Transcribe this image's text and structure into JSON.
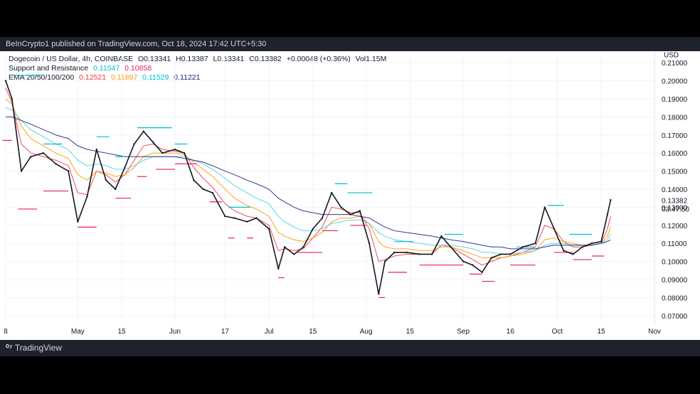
{
  "header": {
    "published": "BeInCrypto1 published on TradingView.com, Oct 18, 2024 17:42 UTC+5:30"
  },
  "footer": {
    "brand": "TradingView"
  },
  "legend": {
    "symbol_line": "Dogecoin / US Dollar, 4h, COINBASE",
    "ohlc": {
      "O": "O0.13341",
      "H": "H0.13387",
      "L": "L0.13341",
      "C": "C0.13382",
      "chg": "+0.00048 (+0.36%)",
      "vol": "Vol1.15M"
    },
    "sr_label": "Support and Resistance",
    "sr_values": [
      "0.11547",
      "0.10858"
    ],
    "ema_label": "EMA 20/50/100/200",
    "ema_values": [
      "0.12521",
      "0.11897",
      "0.11529",
      "0.11221"
    ]
  },
  "colors": {
    "candles": "#131722",
    "resistance": "#00bcd4",
    "support": "#e91e63",
    "ema20": "#f23645",
    "ema50": "#ff9800",
    "ema100": "#4dd0e1",
    "ema200": "#1a237e",
    "grid": "#f0f3fa",
    "axis_text": "#131722"
  },
  "chart_data": {
    "type": "line",
    "title": "Dogecoin / US Dollar, 4h, COINBASE",
    "currency_label": "USD",
    "y_ticks": [
      "0.21000",
      "0.20000",
      "0.19000",
      "0.18000",
      "0.17000",
      "0.16000",
      "0.15000",
      "0.14000",
      "0.13000",
      "0.12000",
      "0.11000",
      "0.10000",
      "0.09000",
      "0.08000",
      "0.07000"
    ],
    "ylim": [
      0.066,
      0.214
    ],
    "last_price_label": "0.13382",
    "countdown_label": "03:47:50",
    "x_ticks": [
      "8",
      "May",
      "15",
      "Jun",
      "17",
      "Jul",
      "15",
      "Aug",
      "15",
      "Sep",
      "16",
      "Oct",
      "15",
      "Nov"
    ],
    "x_tick_dates": [
      "2024-04-08",
      "2024-05-01",
      "2024-05-15",
      "2024-06-01",
      "2024-06-17",
      "2024-07-01",
      "2024-07-15",
      "2024-08-01",
      "2024-08-15",
      "2024-09-01",
      "2024-09-16",
      "2024-10-01",
      "2024-10-15",
      "2024-11-01"
    ],
    "x_range": [
      "2024-04-08",
      "2024-11-01"
    ],
    "price_series": {
      "name": "DOGE/USD",
      "x": [
        "2024-04-08",
        "2024-04-10",
        "2024-04-13",
        "2024-04-16",
        "2024-04-20",
        "2024-04-24",
        "2024-04-28",
        "2024-05-01",
        "2024-05-04",
        "2024-05-07",
        "2024-05-10",
        "2024-05-13",
        "2024-05-16",
        "2024-05-19",
        "2024-05-22",
        "2024-05-25",
        "2024-05-28",
        "2024-06-01",
        "2024-06-04",
        "2024-06-07",
        "2024-06-10",
        "2024-06-13",
        "2024-06-17",
        "2024-06-20",
        "2024-06-24",
        "2024-06-27",
        "2024-07-01",
        "2024-07-04",
        "2024-07-06",
        "2024-07-09",
        "2024-07-12",
        "2024-07-15",
        "2024-07-18",
        "2024-07-21",
        "2024-07-24",
        "2024-07-27",
        "2024-07-30",
        "2024-08-02",
        "2024-08-05",
        "2024-08-07",
        "2024-08-10",
        "2024-08-14",
        "2024-08-18",
        "2024-08-22",
        "2024-08-25",
        "2024-08-28",
        "2024-09-01",
        "2024-09-04",
        "2024-09-07",
        "2024-09-10",
        "2024-09-13",
        "2024-09-16",
        "2024-09-20",
        "2024-09-24",
        "2024-09-27",
        "2024-09-30",
        "2024-10-03",
        "2024-10-06",
        "2024-10-09",
        "2024-10-12",
        "2024-10-15",
        "2024-10-17",
        "2024-10-18"
      ],
      "values": [
        0.2,
        0.19,
        0.15,
        0.158,
        0.16,
        0.154,
        0.15,
        0.122,
        0.136,
        0.162,
        0.145,
        0.14,
        0.152,
        0.165,
        0.172,
        0.166,
        0.16,
        0.162,
        0.16,
        0.145,
        0.14,
        0.138,
        0.125,
        0.124,
        0.122,
        0.124,
        0.118,
        0.096,
        0.108,
        0.104,
        0.108,
        0.118,
        0.124,
        0.138,
        0.13,
        0.126,
        0.128,
        0.11,
        0.082,
        0.1,
        0.105,
        0.105,
        0.104,
        0.104,
        0.114,
        0.108,
        0.1,
        0.098,
        0.094,
        0.102,
        0.104,
        0.104,
        0.108,
        0.11,
        0.13,
        0.118,
        0.106,
        0.104,
        0.108,
        0.11,
        0.111,
        0.126,
        0.134
      ]
    },
    "ema_series": [
      {
        "name": "EMA 20",
        "values": [
          0.196,
          0.188,
          0.165,
          0.16,
          0.158,
          0.156,
          0.153,
          0.138,
          0.137,
          0.15,
          0.148,
          0.144,
          0.148,
          0.156,
          0.164,
          0.165,
          0.162,
          0.161,
          0.16,
          0.152,
          0.146,
          0.141,
          0.132,
          0.128,
          0.125,
          0.124,
          0.12,
          0.106,
          0.107,
          0.106,
          0.107,
          0.113,
          0.119,
          0.13,
          0.129,
          0.127,
          0.127,
          0.118,
          0.1,
          0.101,
          0.103,
          0.104,
          0.104,
          0.104,
          0.109,
          0.108,
          0.104,
          0.101,
          0.098,
          0.1,
          0.102,
          0.103,
          0.105,
          0.108,
          0.12,
          0.118,
          0.111,
          0.108,
          0.108,
          0.109,
          0.11,
          0.118,
          0.125
        ]
      },
      {
        "name": "EMA 50",
        "values": [
          0.19,
          0.187,
          0.175,
          0.168,
          0.164,
          0.16,
          0.157,
          0.148,
          0.145,
          0.15,
          0.149,
          0.147,
          0.148,
          0.152,
          0.158,
          0.16,
          0.16,
          0.16,
          0.159,
          0.155,
          0.151,
          0.147,
          0.14,
          0.135,
          0.131,
          0.129,
          0.125,
          0.116,
          0.114,
          0.112,
          0.111,
          0.113,
          0.116,
          0.122,
          0.124,
          0.124,
          0.125,
          0.121,
          0.111,
          0.108,
          0.107,
          0.107,
          0.106,
          0.106,
          0.108,
          0.108,
          0.106,
          0.104,
          0.102,
          0.102,
          0.102,
          0.103,
          0.104,
          0.106,
          0.112,
          0.113,
          0.111,
          0.11,
          0.109,
          0.109,
          0.11,
          0.114,
          0.119
        ]
      },
      {
        "name": "EMA 100",
        "values": [
          0.185,
          0.184,
          0.178,
          0.173,
          0.169,
          0.165,
          0.162,
          0.156,
          0.153,
          0.154,
          0.153,
          0.151,
          0.151,
          0.153,
          0.156,
          0.158,
          0.158,
          0.158,
          0.158,
          0.156,
          0.154,
          0.151,
          0.146,
          0.142,
          0.138,
          0.135,
          0.132,
          0.125,
          0.122,
          0.119,
          0.117,
          0.117,
          0.118,
          0.121,
          0.122,
          0.123,
          0.123,
          0.121,
          0.116,
          0.114,
          0.112,
          0.111,
          0.11,
          0.109,
          0.109,
          0.109,
          0.108,
          0.107,
          0.105,
          0.105,
          0.104,
          0.104,
          0.105,
          0.106,
          0.109,
          0.11,
          0.11,
          0.109,
          0.109,
          0.109,
          0.11,
          0.112,
          0.115
        ]
      },
      {
        "name": "EMA 200",
        "values": [
          0.18,
          0.18,
          0.178,
          0.176,
          0.173,
          0.17,
          0.168,
          0.164,
          0.162,
          0.161,
          0.16,
          0.159,
          0.158,
          0.158,
          0.158,
          0.158,
          0.158,
          0.158,
          0.157,
          0.156,
          0.155,
          0.153,
          0.15,
          0.148,
          0.145,
          0.143,
          0.14,
          0.135,
          0.133,
          0.13,
          0.128,
          0.127,
          0.126,
          0.126,
          0.126,
          0.126,
          0.125,
          0.124,
          0.121,
          0.119,
          0.117,
          0.116,
          0.115,
          0.114,
          0.113,
          0.112,
          0.111,
          0.11,
          0.109,
          0.108,
          0.108,
          0.107,
          0.107,
          0.107,
          0.108,
          0.109,
          0.109,
          0.109,
          0.109,
          0.109,
          0.11,
          0.111,
          0.112
        ]
      }
    ],
    "resistance_levels": [
      {
        "x0": "2024-04-10",
        "x1": "2024-04-20",
        "y": 0.203
      },
      {
        "x0": "2024-04-20",
        "x1": "2024-04-26",
        "y": 0.165
      },
      {
        "x0": "2024-05-07",
        "x1": "2024-05-11",
        "y": 0.169
      },
      {
        "x0": "2024-05-13",
        "x1": "2024-05-16",
        "y": 0.158
      },
      {
        "x0": "2024-05-20",
        "x1": "2024-05-31",
        "y": 0.174
      },
      {
        "x0": "2024-06-01",
        "x1": "2024-06-05",
        "y": 0.165
      },
      {
        "x0": "2024-06-18",
        "x1": "2024-06-25",
        "y": 0.13
      },
      {
        "x0": "2024-07-22",
        "x1": "2024-07-26",
        "y": 0.143
      },
      {
        "x0": "2024-07-26",
        "x1": "2024-08-03",
        "y": 0.138
      },
      {
        "x0": "2024-08-10",
        "x1": "2024-08-16",
        "y": 0.111
      },
      {
        "x0": "2024-08-26",
        "x1": "2024-09-01",
        "y": 0.115
      },
      {
        "x0": "2024-09-18",
        "x1": "2024-09-24",
        "y": 0.108
      },
      {
        "x0": "2024-09-28",
        "x1": "2024-10-03",
        "y": 0.131
      },
      {
        "x0": "2024-10-05",
        "x1": "2024-10-12",
        "y": 0.115
      }
    ],
    "support_levels": [
      {
        "x0": "2024-04-07",
        "x1": "2024-04-10",
        "y": 0.167
      },
      {
        "x0": "2024-04-12",
        "x1": "2024-04-18",
        "y": 0.129
      },
      {
        "x0": "2024-04-20",
        "x1": "2024-04-28",
        "y": 0.139
      },
      {
        "x0": "2024-05-01",
        "x1": "2024-05-07",
        "y": 0.119
      },
      {
        "x0": "2024-05-13",
        "x1": "2024-05-18",
        "y": 0.135
      },
      {
        "x0": "2024-05-20",
        "x1": "2024-05-23",
        "y": 0.147
      },
      {
        "x0": "2024-05-26",
        "x1": "2024-06-01",
        "y": 0.151
      },
      {
        "x0": "2024-06-01",
        "x1": "2024-06-08",
        "y": 0.154
      },
      {
        "x0": "2024-06-12",
        "x1": "2024-06-16",
        "y": 0.133
      },
      {
        "x0": "2024-06-18",
        "x1": "2024-06-20",
        "y": 0.113
      },
      {
        "x0": "2024-06-24",
        "x1": "2024-06-26",
        "y": 0.113
      },
      {
        "x0": "2024-07-04",
        "x1": "2024-07-06",
        "y": 0.091
      },
      {
        "x0": "2024-07-10",
        "x1": "2024-07-18",
        "y": 0.105
      },
      {
        "x0": "2024-07-18",
        "x1": "2024-07-23",
        "y": 0.117
      },
      {
        "x0": "2024-07-27",
        "x1": "2024-08-01",
        "y": 0.12
      },
      {
        "x0": "2024-08-05",
        "x1": "2024-08-07",
        "y": 0.08
      },
      {
        "x0": "2024-08-08",
        "x1": "2024-08-14",
        "y": 0.094
      },
      {
        "x0": "2024-08-18",
        "x1": "2024-08-24",
        "y": 0.098
      },
      {
        "x0": "2024-08-24",
        "x1": "2024-09-01",
        "y": 0.098
      },
      {
        "x0": "2024-09-03",
        "x1": "2024-09-07",
        "y": 0.093
      },
      {
        "x0": "2024-09-07",
        "x1": "2024-09-11",
        "y": 0.089
      },
      {
        "x0": "2024-09-16",
        "x1": "2024-09-24",
        "y": 0.098
      },
      {
        "x0": "2024-09-30",
        "x1": "2024-10-06",
        "y": 0.105
      },
      {
        "x0": "2024-10-06",
        "x1": "2024-10-12",
        "y": 0.101
      },
      {
        "x0": "2024-10-12",
        "x1": "2024-10-16",
        "y": 0.103
      }
    ]
  }
}
